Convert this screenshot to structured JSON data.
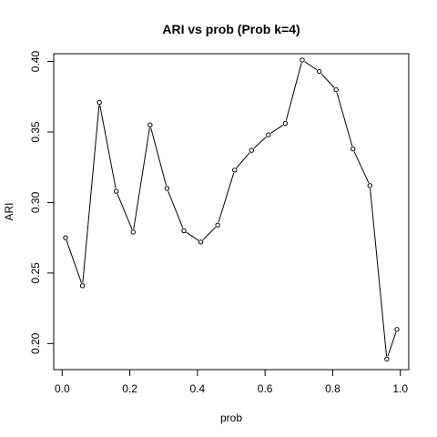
{
  "chart_data": {
    "type": "line",
    "title": "ARI vs prob (Prob k=4)",
    "xlabel": "prob",
    "ylabel": "ARI",
    "xlim": [
      -0.025,
      1.025
    ],
    "ylim": [
      0.1815,
      0.4055
    ],
    "xticks": [
      0.0,
      0.2,
      0.4,
      0.6,
      0.8,
      1.0
    ],
    "xtick_labels": [
      "0.0",
      "0.2",
      "0.4",
      "0.6",
      "0.8",
      "1.0"
    ],
    "yticks": [
      0.2,
      0.25,
      0.3,
      0.35,
      0.4
    ],
    "ytick_labels": [
      "0.20",
      "0.25",
      "0.30",
      "0.35",
      "0.40"
    ],
    "grid": false,
    "legend": "none",
    "x": [
      0.01,
      0.06,
      0.11,
      0.16,
      0.21,
      0.26,
      0.31,
      0.36,
      0.41,
      0.46,
      0.51,
      0.56,
      0.61,
      0.66,
      0.71,
      0.76,
      0.81,
      0.86,
      0.91,
      0.96,
      0.99
    ],
    "series": [
      {
        "values": [
          0.275,
          0.241,
          0.371,
          0.308,
          0.279,
          0.355,
          0.31,
          0.28,
          0.272,
          0.284,
          0.323,
          0.337,
          0.348,
          0.356,
          0.401,
          0.393,
          0.38,
          0.338,
          0.312,
          0.189,
          0.21
        ]
      }
    ]
  }
}
